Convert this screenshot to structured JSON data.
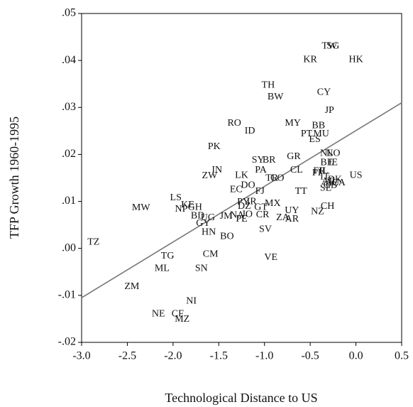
{
  "chart_data": {
    "type": "scatter",
    "y_label": "TFP Growth 1960-1995",
    "x_label": "Technological Distance to US",
    "xlim": [
      -3.0,
      0.5
    ],
    "ylim": [
      -0.02,
      0.05
    ],
    "xticks": [
      {
        "value": -3.0,
        "label": "-3.0"
      },
      {
        "value": -2.5,
        "label": "-2.5"
      },
      {
        "value": -2.0,
        "label": "-2.0"
      },
      {
        "value": -1.5,
        "label": "-1.5"
      },
      {
        "value": -1.0,
        "label": "-1.0"
      },
      {
        "value": -0.5,
        "label": "-0.5"
      },
      {
        "value": 0.0,
        "label": "0.0"
      },
      0.5
    ],
    "yticks": [
      {
        "value": -0.02,
        "label": "-.02"
      },
      {
        "value": -0.01,
        "label": "-.01"
      },
      {
        "value": 0.0,
        "label": ".00"
      },
      {
        "value": 0.01,
        "label": ".01"
      },
      {
        "value": 0.02,
        "label": ".02"
      },
      {
        "value": 0.03,
        "label": ".03"
      },
      {
        "value": 0.04,
        "label": ".04"
      },
      {
        "value": 0.05,
        "label": ".05"
      }
    ],
    "point_labels": [
      "TW",
      "SG",
      "KR",
      "HK",
      "TH",
      "BW",
      "CY",
      "JP",
      "RO",
      "ID",
      "MY",
      "BB",
      "PT",
      "MU",
      "ES",
      "PK",
      "SY",
      "BR",
      "GR",
      "NO",
      "NL",
      "BE",
      "IE",
      "CL",
      "IN",
      "PA",
      "LK",
      "TR",
      "CO",
      "ZW",
      "US",
      "EC",
      "DO",
      "FJ",
      "TT",
      "FI",
      "FR",
      "IL",
      "IT",
      "DK",
      "AU",
      "CA",
      "AT",
      "GB",
      "SE",
      "LS",
      "KE",
      "GH",
      "NP",
      "MW",
      "PY",
      "IR",
      "MX",
      "DZ",
      "GT",
      "UY",
      "BD",
      "UG",
      "JM",
      "NA",
      "JO",
      "CR",
      "ZA",
      "AR",
      "NZ",
      "CH",
      "PE",
      "GY",
      "SV",
      "HN",
      "BO",
      "TZ",
      "TG",
      "CM",
      "VE",
      "ML",
      "SN",
      "ZM",
      "NI",
      "NE",
      "CF",
      "MZ"
    ],
    "x": [
      -0.29,
      -0.25,
      -0.5,
      0.0,
      -0.96,
      -0.88,
      -0.35,
      -0.29,
      -1.33,
      -1.16,
      -0.69,
      -0.41,
      -0.54,
      -0.38,
      -0.45,
      -1.55,
      -1.07,
      -0.95,
      -0.68,
      -0.25,
      -0.32,
      -0.32,
      -0.25,
      -0.65,
      -1.52,
      -1.04,
      -1.25,
      -0.92,
      -0.86,
      -1.6,
      0.0,
      -1.31,
      -1.18,
      -1.05,
      -0.6,
      -0.43,
      -0.4,
      -0.35,
      -0.34,
      -0.23,
      -0.26,
      -0.19,
      -0.31,
      -0.28,
      -0.33,
      -1.97,
      -1.84,
      -1.76,
      -1.91,
      -2.35,
      -1.23,
      -1.14,
      -0.91,
      -1.22,
      -1.04,
      -0.7,
      -1.73,
      -1.62,
      -1.42,
      -1.3,
      -1.19,
      -1.02,
      -0.8,
      -0.7,
      -0.42,
      -0.31,
      -1.25,
      -1.67,
      -0.99,
      -1.61,
      -1.41,
      -2.87,
      -2.06,
      -1.59,
      -0.93,
      -2.12,
      -1.69,
      -2.45,
      -1.8,
      -2.16,
      -1.95,
      -1.9
    ],
    "values": [
      0.043,
      0.043,
      0.0401,
      0.0401,
      0.0347,
      0.0322,
      0.0332,
      0.0293,
      0.0266,
      0.0249,
      0.0266,
      0.0261,
      0.0243,
      0.0243,
      0.0231,
      0.0216,
      0.0187,
      0.0187,
      0.0195,
      0.0202,
      0.0202,
      0.0182,
      0.0182,
      0.0166,
      0.0166,
      0.0166,
      0.0155,
      0.0149,
      0.0149,
      0.0154,
      0.0155,
      0.0125,
      0.0134,
      0.0121,
      0.0121,
      0.016,
      0.0164,
      0.0164,
      0.0152,
      0.0146,
      0.0139,
      0.0139,
      0.0142,
      0.0134,
      0.0128,
      0.0107,
      0.0092,
      0.0087,
      0.0083,
      0.0086,
      0.0098,
      0.0099,
      0.0095,
      0.0089,
      0.0087,
      0.008,
      0.0069,
      0.0065,
      0.0068,
      0.007,
      0.0072,
      0.0071,
      0.0065,
      0.0062,
      0.0078,
      0.0089,
      0.0062,
      0.0053,
      0.004,
      0.0034,
      0.0025,
      0.0013,
      -0.0017,
      -0.0013,
      -0.002,
      -0.0043,
      -0.0043,
      -0.0082,
      -0.0113,
      -0.014,
      -0.014,
      -0.0151
    ],
    "fit_line": {
      "x": [
        -3.0,
        0.5
      ],
      "values": [
        -0.0105,
        0.031
      ],
      "color": "#777777"
    }
  }
}
